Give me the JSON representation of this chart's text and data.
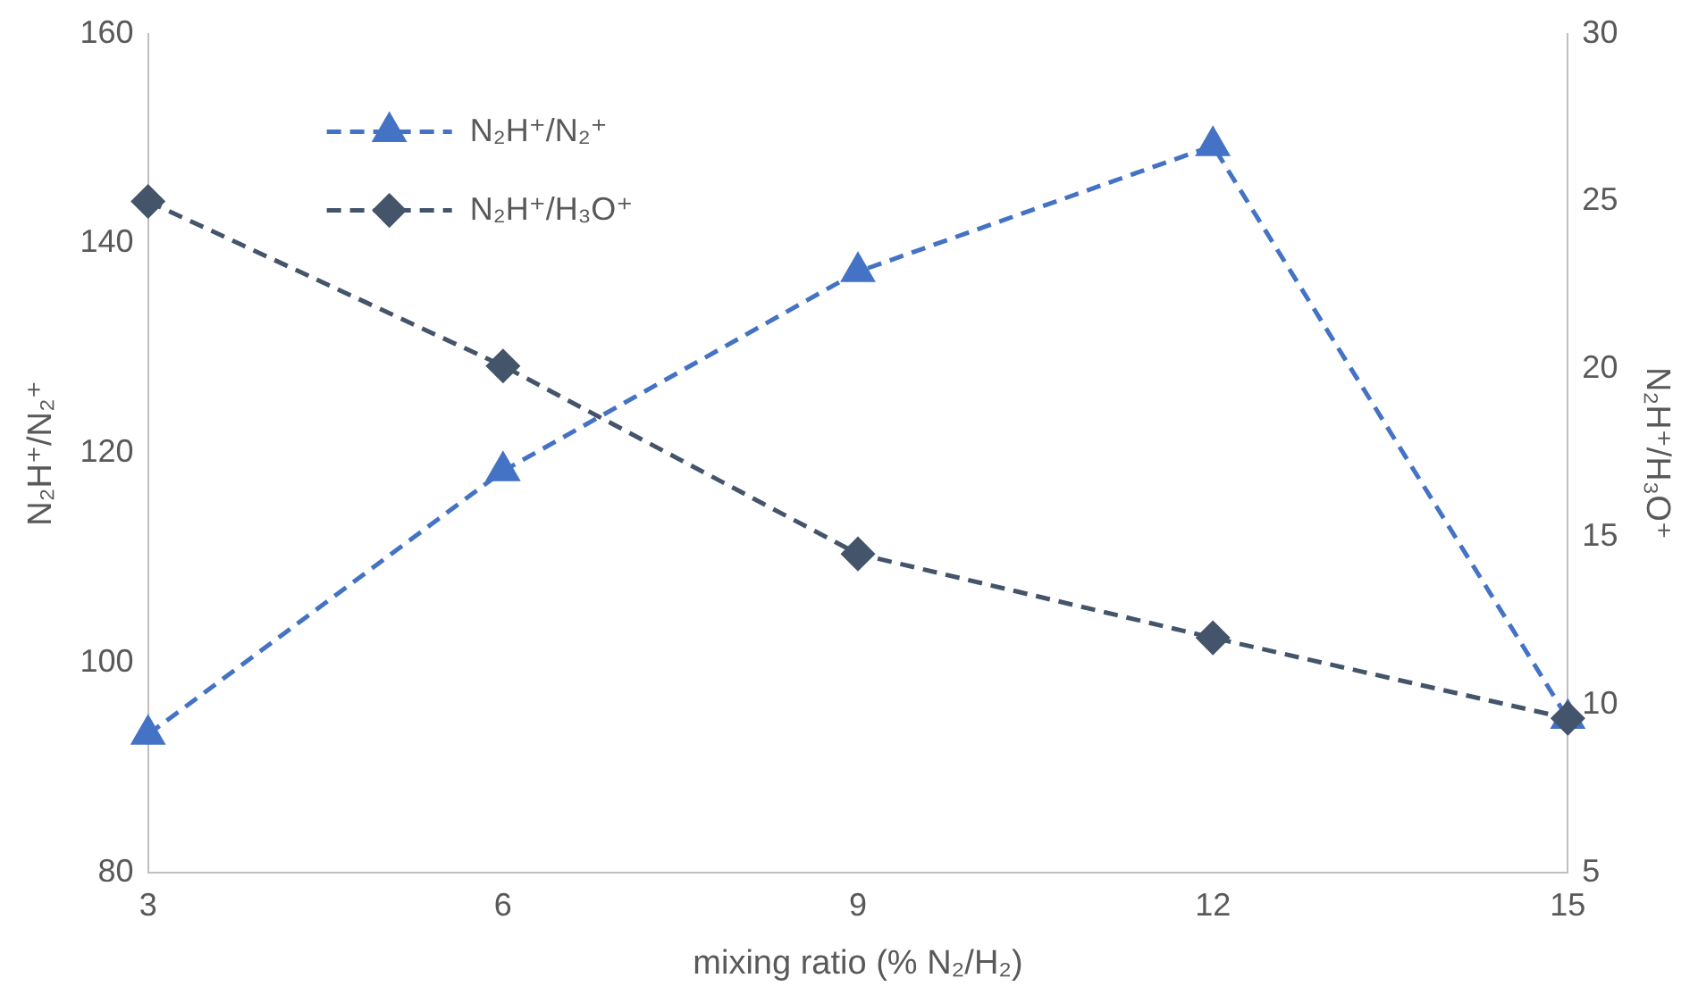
{
  "chart_data": {
    "type": "line",
    "xlabel": "mixing ratio (% N₂/H₂)",
    "ylabel": "N₂H⁺/N₂⁺",
    "y2label": "N₂H⁺/H₃O⁺",
    "x": [
      3,
      6,
      9,
      12,
      15
    ],
    "xlim": [
      3,
      15
    ],
    "xticks": [
      3,
      6,
      9,
      12,
      15
    ],
    "ylim": [
      80,
      160
    ],
    "yticks": [
      80,
      100,
      120,
      140,
      160
    ],
    "y2lim": [
      5,
      30
    ],
    "y2ticks": [
      5,
      10,
      15,
      20,
      25,
      30
    ],
    "series": [
      {
        "name": "N₂H⁺/N₂⁺",
        "color": "#4472c4",
        "values": [
          93.2,
          118.3,
          137.3,
          149.3,
          94.7
        ],
        "marker": "triangle"
      },
      {
        "name": "N₂H⁺/H₃O⁺",
        "color": "#44546a",
        "values": [
          25.0,
          20.1,
          14.5,
          12.0,
          9.6
        ],
        "axis": "y2",
        "marker": "diamond"
      }
    ],
    "line_style": "dashed",
    "grid": false,
    "legend": "top left"
  }
}
